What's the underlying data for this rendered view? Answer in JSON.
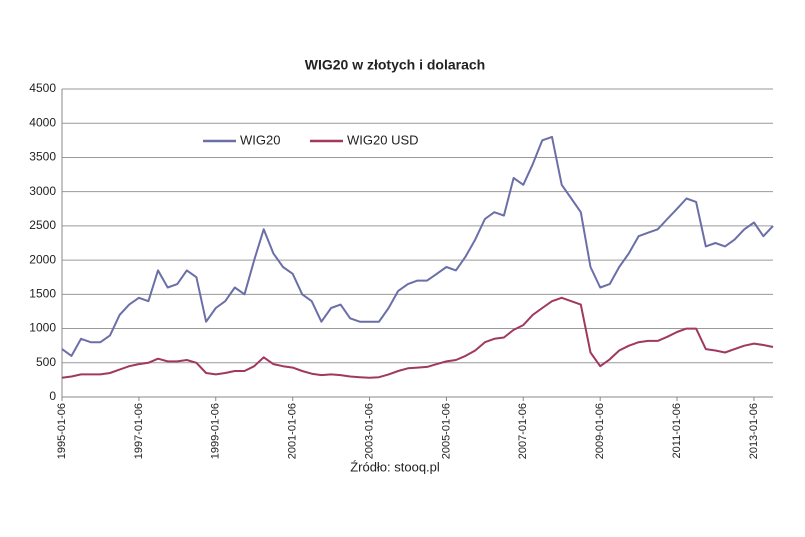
{
  "chart_data": {
    "type": "line",
    "title": "WIG20 w złotych i dolarach",
    "annotations": [
      "Źródło: stooq.pl"
    ],
    "x": [
      "1995-01-06",
      "1995-04-06",
      "1995-07-06",
      "1995-10-06",
      "1996-01-06",
      "1996-04-06",
      "1996-07-06",
      "1996-10-06",
      "1997-01-06",
      "1997-04-06",
      "1997-07-06",
      "1997-10-06",
      "1998-01-06",
      "1998-04-06",
      "1998-07-06",
      "1998-10-06",
      "1999-01-06",
      "1999-04-06",
      "1999-07-06",
      "1999-10-06",
      "2000-01-06",
      "2000-04-06",
      "2000-07-06",
      "2000-10-06",
      "2001-01-06",
      "2001-04-06",
      "2001-07-06",
      "2001-10-06",
      "2002-01-06",
      "2002-04-06",
      "2002-07-06",
      "2002-10-06",
      "2003-01-06",
      "2003-04-06",
      "2003-07-06",
      "2003-10-06",
      "2004-01-06",
      "2004-04-06",
      "2004-07-06",
      "2004-10-06",
      "2005-01-06",
      "2005-04-06",
      "2005-07-06",
      "2005-10-06",
      "2006-01-06",
      "2006-04-06",
      "2006-07-06",
      "2006-10-06",
      "2007-01-06",
      "2007-04-06",
      "2007-07-06",
      "2007-10-06",
      "2008-01-06",
      "2008-04-06",
      "2008-07-06",
      "2008-10-06",
      "2009-01-06",
      "2009-04-06",
      "2009-07-06",
      "2009-10-06",
      "2010-01-06",
      "2010-04-06",
      "2010-07-06",
      "2010-10-06",
      "2011-01-06",
      "2011-04-06",
      "2011-07-06",
      "2011-10-06",
      "2012-01-06",
      "2012-04-06",
      "2012-07-06",
      "2012-10-06",
      "2013-01-06",
      "2013-04-06",
      "2013-07-06"
    ],
    "series": [
      {
        "name": "WIG20",
        "color": "#6b6fa8",
        "values": [
          700,
          600,
          850,
          800,
          800,
          900,
          1200,
          1350,
          1450,
          1400,
          1850,
          1600,
          1650,
          1850,
          1750,
          1100,
          1300,
          1400,
          1600,
          1500,
          2000,
          2450,
          2100,
          1900,
          1800,
          1500,
          1400,
          1100,
          1300,
          1350,
          1150,
          1100,
          1100,
          1100,
          1300,
          1550,
          1650,
          1700,
          1700,
          1800,
          1900,
          1850,
          2050,
          2300,
          2600,
          2700,
          2650,
          3200,
          3100,
          3400,
          3750,
          3800,
          3100,
          2900,
          2700,
          1900,
          1600,
          1650,
          1900,
          2100,
          2350,
          2400,
          2450,
          2600,
          2750,
          2900,
          2850,
          2200,
          2250,
          2200,
          2300,
          2450,
          2550,
          2350,
          2500
        ]
      },
      {
        "name": "WIG20 USD",
        "color": "#a0385f",
        "values": [
          280,
          300,
          330,
          330,
          330,
          350,
          400,
          450,
          480,
          500,
          560,
          520,
          520,
          540,
          500,
          350,
          330,
          350,
          380,
          380,
          450,
          580,
          480,
          450,
          430,
          380,
          340,
          320,
          330,
          320,
          300,
          290,
          280,
          290,
          330,
          380,
          420,
          430,
          440,
          480,
          520,
          540,
          600,
          680,
          800,
          850,
          870,
          980,
          1050,
          1200,
          1300,
          1400,
          1450,
          1400,
          1350,
          650,
          450,
          550,
          680,
          750,
          800,
          820,
          820,
          880,
          950,
          1000,
          1000,
          700,
          680,
          650,
          700,
          750,
          780,
          760,
          730
        ]
      }
    ],
    "xlim": [
      "1995-01-06",
      "2013-07-06"
    ],
    "xticks": [
      "1995-01-06",
      "1997-01-06",
      "1999-01-06",
      "2001-01-06",
      "2003-01-06",
      "2005-01-06",
      "2007-01-06",
      "2009-01-06",
      "2011-01-06",
      "2013-01-06"
    ],
    "ylim": [
      0,
      4500
    ],
    "yticks": [
      0,
      500,
      1000,
      1500,
      2000,
      2500,
      3000,
      3500,
      4000,
      4500
    ],
    "grid": true,
    "legend": "top"
  }
}
